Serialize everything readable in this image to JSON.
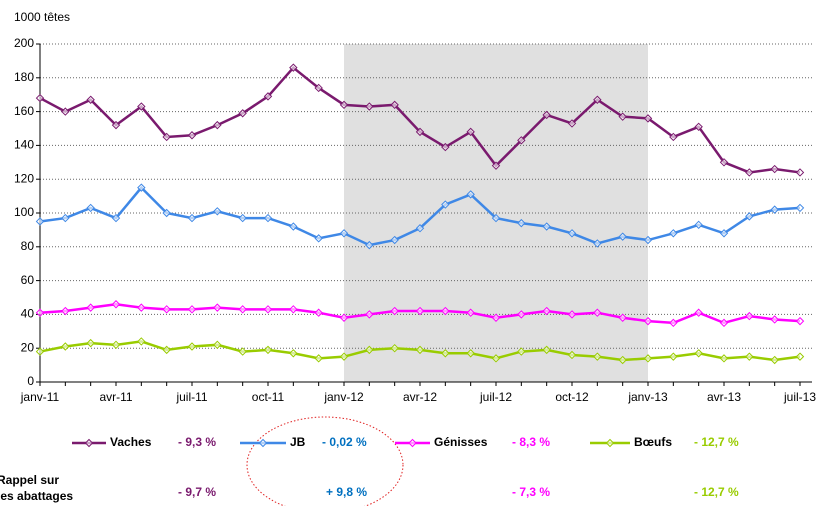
{
  "chart_data": {
    "type": "line",
    "y_label": "1000 têtes",
    "categories": [
      "janv-11",
      null,
      null,
      "avr-11",
      null,
      null,
      "juil-11",
      null,
      null,
      "oct-11",
      null,
      null,
      "janv-12",
      null,
      null,
      "avr-12",
      null,
      null,
      "juil-12",
      null,
      null,
      "oct-12",
      null,
      null,
      "janv-13",
      null,
      null,
      "avr-13",
      null,
      null,
      "juil-13"
    ],
    "ylim": [
      0,
      200
    ],
    "yticks": [
      0,
      20,
      40,
      60,
      80,
      100,
      120,
      140,
      160,
      180,
      200
    ],
    "grid": true,
    "highlight": {
      "from": "janv-12",
      "to": "janv-13"
    },
    "series": [
      {
        "name": "Vaches",
        "color": "#7a1a6e",
        "change_label": "- 9,3 %",
        "rappel_label": "- 9,7 %",
        "values": [
          168,
          160,
          167,
          152,
          163,
          145,
          146,
          152,
          159,
          169,
          186,
          174,
          164,
          163,
          164,
          148,
          139,
          148,
          128,
          143,
          158,
          153,
          167,
          157,
          156,
          145,
          151,
          130,
          124,
          126,
          124
        ]
      },
      {
        "name": "JB",
        "color": "#3f88e6",
        "label_color": "#0070c0",
        "change_label": "- 0,02 %",
        "rappel_label": "+ 9,8 %",
        "values": [
          95,
          97,
          103,
          97,
          115,
          100,
          97,
          101,
          97,
          97,
          92,
          85,
          88,
          81,
          84,
          91,
          105,
          111,
          97,
          94,
          92,
          88,
          82,
          86,
          84,
          88,
          93,
          88,
          98,
          102,
          103
        ]
      },
      {
        "name": "Génisses",
        "color": "#ff00ff",
        "change_label": "- 8,3 %",
        "rappel_label": "- 7,3 %",
        "values": [
          41,
          42,
          44,
          46,
          44,
          43,
          43,
          44,
          43,
          43,
          43,
          41,
          38,
          40,
          42,
          42,
          42,
          41,
          38,
          40,
          42,
          40,
          41,
          38,
          36,
          35,
          41,
          35,
          39,
          37,
          36
        ]
      },
      {
        "name": "Bœufs",
        "color": "#99cc00",
        "change_label": "- 12,7 %",
        "rappel_label": "- 12,7 %",
        "values": [
          18,
          21,
          23,
          22,
          24,
          19,
          21,
          22,
          18,
          19,
          17,
          14,
          15,
          19,
          20,
          19,
          17,
          17,
          14,
          18,
          19,
          16,
          15,
          13,
          14,
          15,
          17,
          14,
          15,
          13,
          15
        ]
      }
    ],
    "rappel": [
      "Rappel sur",
      "les abattages"
    ]
  }
}
